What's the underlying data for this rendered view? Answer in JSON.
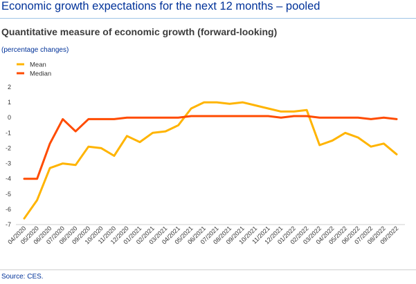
{
  "header": {
    "title": "Economic growth expectations for the next 12 months – pooled",
    "subtitle": "Quantitative measure of economic growth (forward-looking)",
    "units": "(percentage changes)"
  },
  "footer": {
    "source": "Source: CES."
  },
  "colors": {
    "mean": "#FFB400",
    "median": "#FF4B00",
    "axis": "#cfcfcf"
  },
  "chart_data": {
    "type": "line",
    "title": "Quantitative measure of economic growth (forward-looking)",
    "ylabel": "(percentage changes)",
    "xlabel": "",
    "ylim": [
      -7,
      2
    ],
    "yticks": [
      2,
      1,
      0,
      -1,
      -2,
      -3,
      -4,
      -5,
      -6,
      -7
    ],
    "grid": false,
    "legend_position": "top-left",
    "categories": [
      "04/2020",
      "05/2020",
      "06/2020",
      "07/2020",
      "08/2020",
      "09/2020",
      "10/2020",
      "11/2020",
      "12/2020",
      "01/2021",
      "02/2021",
      "03/2021",
      "04/2021",
      "05/2021",
      "06/2021",
      "07/2021",
      "08/2021",
      "09/2021",
      "10/2021",
      "11/2021",
      "12/2021",
      "01/2022",
      "02/2022",
      "03/2022",
      "04/2022",
      "05/2022",
      "06/2022",
      "07/2022",
      "08/2022",
      "09/2022"
    ],
    "series": [
      {
        "name": "Mean",
        "color": "#FFB400",
        "values": [
          -6.6,
          -5.4,
          -3.3,
          -3.0,
          -3.1,
          -1.9,
          -2.0,
          -2.5,
          -1.2,
          -1.6,
          -1.0,
          -0.9,
          -0.5,
          0.6,
          1.0,
          1.0,
          0.9,
          1.0,
          0.8,
          0.6,
          0.4,
          0.4,
          0.5,
          -1.8,
          -1.5,
          -1.0,
          -1.3,
          -1.9,
          -1.7,
          -2.4
        ]
      },
      {
        "name": "Median",
        "color": "#FF4B00",
        "values": [
          -4.0,
          -4.0,
          -1.7,
          -0.1,
          -0.9,
          -0.1,
          -0.1,
          -0.1,
          0.0,
          0.0,
          0.0,
          0.0,
          0.0,
          0.1,
          0.1,
          0.1,
          0.1,
          0.1,
          0.1,
          0.1,
          0.0,
          0.1,
          0.1,
          0.0,
          0.0,
          0.0,
          0.0,
          -0.1,
          0.0,
          -0.1
        ]
      }
    ]
  }
}
